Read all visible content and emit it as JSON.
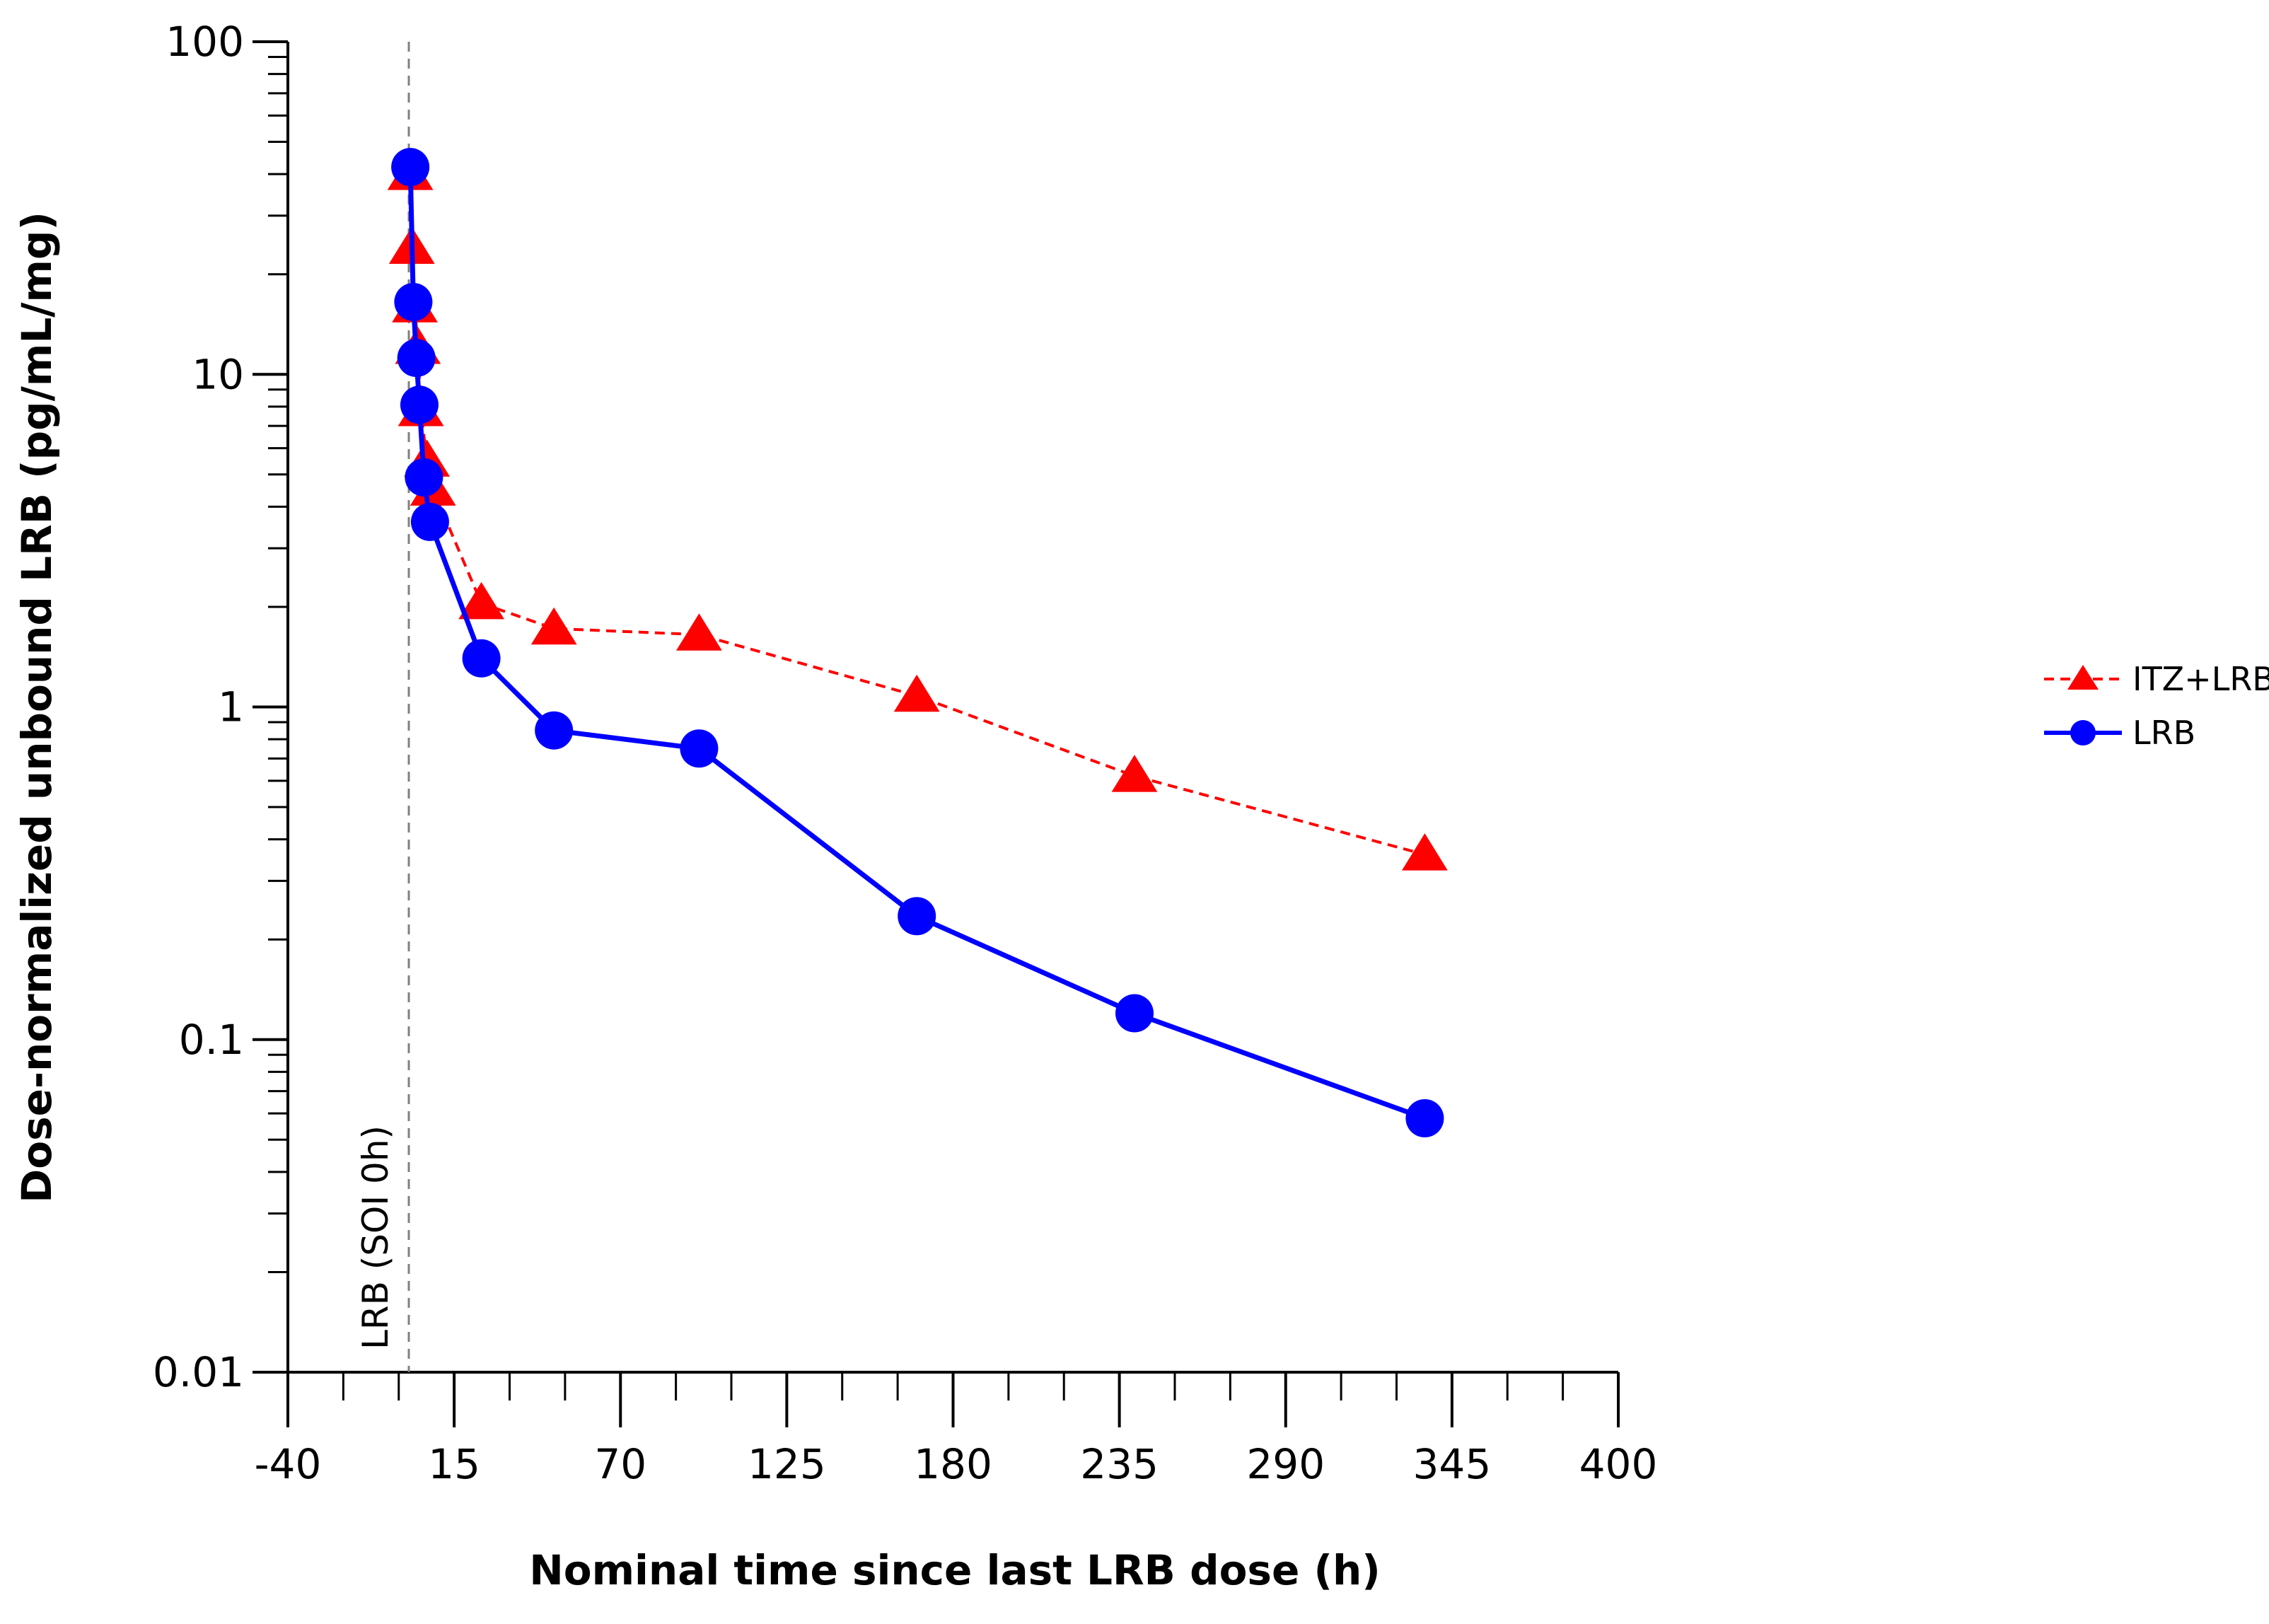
{
  "chart_data": {
    "type": "line",
    "title": "",
    "xlabel": "Nominal time since last LRB dose (h)",
    "ylabel": "Dose-normalized unbound LRB (pg/mL/mg)",
    "xlim": [
      -40,
      400
    ],
    "ylim": [
      0.01,
      100
    ],
    "yscale": "log",
    "x_major_ticks": [
      -40,
      15,
      70,
      125,
      180,
      235,
      290,
      345,
      400
    ],
    "x_tick_labels": [
      "-40",
      "15",
      "70",
      "125",
      "180",
      "235",
      "290",
      "345",
      "400"
    ],
    "x_minor_step": 18.333,
    "y_major_ticks": [
      0.01,
      0.1,
      1,
      10,
      100
    ],
    "y_tick_labels": [
      "0.01",
      "0.1",
      "1",
      "10",
      "100"
    ],
    "grid": false,
    "legend_position": "right",
    "annotation": {
      "text": "LRB (SOI 0h)",
      "x": 0
    },
    "series": [
      {
        "name": "ITZ+LRB",
        "color": "#ff0000",
        "marker": "triangle",
        "line_style": "dashed",
        "x": [
          0.5,
          1,
          2,
          3,
          4,
          6,
          8,
          24,
          48,
          96,
          168,
          240,
          336
        ],
        "values": [
          40,
          24,
          16,
          12,
          7.8,
          5.5,
          4.5,
          2.05,
          1.72,
          1.65,
          1.08,
          0.62,
          0.36
        ]
      },
      {
        "name": "LRB",
        "color": "#0000ff",
        "marker": "circle",
        "line_style": "solid",
        "x": [
          0.5,
          1.5,
          2.5,
          3.5,
          5,
          7,
          24,
          48,
          96,
          168,
          240,
          336
        ],
        "values": [
          42,
          16.5,
          11.2,
          8.1,
          4.9,
          3.6,
          1.4,
          0.85,
          0.75,
          0.235,
          0.12,
          0.058
        ]
      }
    ]
  }
}
